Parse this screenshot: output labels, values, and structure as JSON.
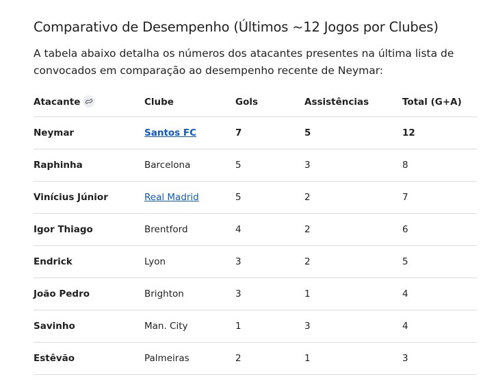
{
  "heading": "Comparativo de Desempenho (Últimos ~12 Jogos por Clubes)",
  "intro": "A tabela abaixo detalha os números dos atacantes presentes na última lista de convocados em comparação ao desempenho recente de Neymar:",
  "table": {
    "columns": [
      "Atacante",
      "Clube",
      "Gols",
      "Assistências",
      "Total (G+A)"
    ],
    "rows": [
      [
        "Neymar",
        "Santos FC",
        7,
        5,
        12
      ],
      [
        "Raphinha",
        "Barcelona",
        5,
        3,
        8
      ],
      [
        "Vinícius Júnior",
        "Real Madrid",
        5,
        2,
        7
      ],
      [
        "Igor Thiago",
        "Brentford",
        4,
        2,
        6
      ],
      [
        "Endrick",
        "Lyon",
        3,
        2,
        5
      ],
      [
        "João Pedro",
        "Brighton",
        3,
        1,
        4
      ],
      [
        "Savinho",
        "Man. City",
        1,
        3,
        4
      ],
      [
        "Estêvão",
        "Palmeiras",
        2,
        1,
        3
      ]
    ],
    "links": [
      true,
      false,
      true,
      false,
      false,
      false,
      false,
      false
    ],
    "bold_rows": [
      true,
      false,
      false,
      false,
      false,
      false,
      false,
      false
    ]
  }
}
